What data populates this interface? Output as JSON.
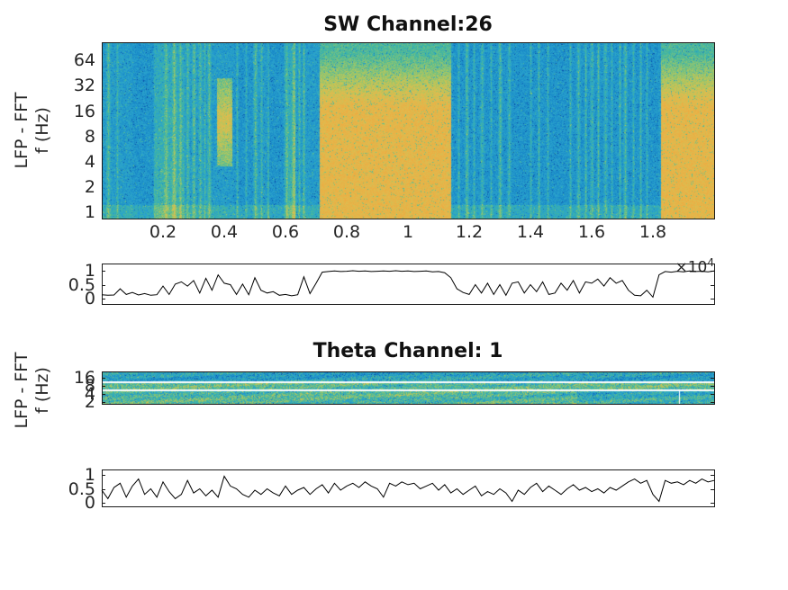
{
  "figure": {
    "bg": "#ffffff",
    "text_color": "#262626",
    "axis_color": "#1a1a1a",
    "line_color": "#000000",
    "colormap_name": "parula"
  },
  "panels": {
    "sw": {
      "title": "SW Channel:26",
      "ylabel_line1": "LFP - FFT",
      "ylabel_line2": "f (Hz)",
      "ytick_labels": [
        "64",
        "32",
        "16",
        "8",
        "4",
        "2",
        "1"
      ],
      "xtick_labels": [
        "0.2",
        "0.4",
        "0.6",
        "0.8",
        "1",
        "1.2",
        "1.4",
        "1.6",
        "1.8"
      ],
      "x_multiplier_base": "×10",
      "x_multiplier_exp": "4"
    },
    "sw_state": {
      "ytick_labels": [
        "1",
        "0.5",
        "0"
      ]
    },
    "theta": {
      "title": "Theta Channel: 1",
      "ylabel_line1": "LFP - FFT",
      "ylabel_line2": "f (Hz)",
      "ytick_labels": [
        "16",
        "8",
        "4",
        "2"
      ]
    },
    "theta_state": {
      "ytick_labels": [
        "1",
        "0.5",
        "0"
      ]
    }
  },
  "chart_data": [
    {
      "type": "heatmap",
      "subtype": "spectrogram",
      "panel": "sw",
      "title": "SW Channel:26",
      "ylabel": "LFP - FFT f (Hz)",
      "freq_scale": "log",
      "freq_ticks_hz": [
        64,
        32,
        16,
        8,
        4,
        2,
        1
      ],
      "freq_range_hz": [
        0.85,
        105
      ],
      "time_range": [
        0,
        20000
      ],
      "time_ticks": [
        2000,
        4000,
        6000,
        8000,
        10000,
        12000,
        14000,
        16000,
        18000
      ],
      "time_multiplier": "×10^4",
      "colormap": "parula",
      "high_power_intervals": [
        [
          7100,
          11400
        ],
        [
          18250,
          20000
        ]
      ],
      "mixed_intervals": [
        [
          1700,
          2700
        ],
        [
          5400,
          6300
        ]
      ],
      "low_power_intervals": [
        [
          1000,
          1650
        ],
        [
          4300,
          5000
        ],
        [
          5450,
          6000
        ],
        [
          11450,
          18150
        ]
      ],
      "warm_blob": {
        "time": [
          3750,
          4250
        ],
        "freq_frac": [
          0.2,
          0.7
        ]
      },
      "streaks": [
        [
          200,
          2,
          0.26
        ],
        [
          500,
          1,
          0.18
        ],
        [
          2100,
          2,
          0.2
        ],
        [
          2350,
          2,
          0.28
        ],
        [
          2550,
          1,
          0.2
        ],
        [
          2800,
          2,
          0.24
        ],
        [
          3000,
          2,
          0.3
        ],
        [
          3200,
          2,
          0.24
        ],
        [
          3350,
          1,
          0.2
        ],
        [
          3500,
          2,
          0.28
        ],
        [
          4400,
          1,
          0.22
        ],
        [
          4700,
          1,
          0.18
        ],
        [
          5000,
          2,
          0.3
        ],
        [
          5200,
          1,
          0.2
        ],
        [
          6000,
          2,
          0.24
        ],
        [
          6250,
          2,
          0.3
        ],
        [
          6450,
          1,
          0.22
        ],
        [
          6600,
          1,
          0.26
        ],
        [
          11650,
          1,
          0.2
        ],
        [
          11900,
          2,
          0.28
        ],
        [
          12150,
          1,
          0.22
        ],
        [
          12400,
          2,
          0.24
        ],
        [
          12700,
          1,
          0.2
        ],
        [
          13000,
          2,
          0.3
        ],
        [
          13300,
          2,
          0.22
        ],
        [
          14000,
          1,
          0.2
        ],
        [
          14250,
          1,
          0.26
        ],
        [
          14550,
          1,
          0.2
        ],
        [
          15300,
          1,
          0.22
        ],
        [
          15550,
          2,
          0.24
        ],
        [
          15800,
          1,
          0.28
        ],
        [
          16000,
          2,
          0.24
        ],
        [
          16200,
          1,
          0.3
        ],
        [
          16450,
          2,
          0.24
        ],
        [
          16650,
          1,
          0.2
        ],
        [
          16900,
          1,
          0.26
        ],
        [
          17100,
          2,
          0.28
        ],
        [
          17350,
          1,
          0.22
        ],
        [
          17600,
          1,
          0.26
        ],
        [
          17800,
          1,
          0.2
        ]
      ]
    },
    {
      "type": "line",
      "panel": "sw_state",
      "y_ticks": [
        0,
        0.5,
        1
      ],
      "y_range": [
        -0.2,
        1.25
      ],
      "x_range": [
        0,
        20000
      ],
      "line_color": "#000000",
      "values": [
        0.14,
        0.12,
        0.13,
        0.35,
        0.15,
        0.22,
        0.13,
        0.18,
        0.12,
        0.14,
        0.45,
        0.15,
        0.52,
        0.6,
        0.45,
        0.65,
        0.2,
        0.73,
        0.3,
        0.85,
        0.55,
        0.5,
        0.15,
        0.52,
        0.14,
        0.75,
        0.3,
        0.2,
        0.25,
        0.12,
        0.15,
        0.1,
        0.14,
        0.78,
        0.18,
        0.55,
        0.95,
        0.97,
        0.99,
        0.97,
        0.98,
        1.0,
        0.98,
        0.99,
        0.97,
        0.98,
        0.99,
        0.98,
        1.0,
        0.98,
        0.99,
        0.97,
        0.98,
        0.99,
        0.96,
        0.97,
        0.93,
        0.75,
        0.35,
        0.22,
        0.15,
        0.5,
        0.2,
        0.55,
        0.15,
        0.5,
        0.12,
        0.55,
        0.6,
        0.2,
        0.5,
        0.25,
        0.6,
        0.15,
        0.2,
        0.55,
        0.3,
        0.65,
        0.2,
        0.6,
        0.55,
        0.7,
        0.45,
        0.75,
        0.55,
        0.65,
        0.3,
        0.12,
        0.1,
        0.3,
        0.05,
        0.85,
        0.97,
        0.95,
        0.98,
        0.96,
        0.99,
        0.97,
        0.98,
        0.96,
        0.99
      ]
    },
    {
      "type": "heatmap",
      "subtype": "spectrogram",
      "panel": "theta",
      "title": "Theta Channel: 1",
      "ylabel": "LFP - FFT f (Hz)",
      "freq_scale": "log",
      "freq_ticks_hz": [
        16,
        8,
        4,
        2
      ],
      "freq_range_hz": [
        1.72,
        27
      ],
      "time_range": [
        0,
        20000
      ],
      "colormap": "parula",
      "bands": [
        {
          "rows": [
            0,
            10
          ],
          "base": 0.34
        },
        {
          "rows": [
            11,
            12
          ],
          "base": "white"
        },
        {
          "rows": [
            13,
            19
          ],
          "base": 0.52
        },
        {
          "rows": [
            20,
            21
          ],
          "base": "white"
        },
        {
          "rows": [
            22,
            35
          ],
          "base": 0.5,
          "cool_after_time": 15500,
          "cool_base": 0.4
        }
      ],
      "white_vline_time": 18850
    },
    {
      "type": "line",
      "panel": "theta_state",
      "y_ticks": [
        0,
        0.5,
        1
      ],
      "y_range": [
        -0.2,
        1.25
      ],
      "x_range": [
        0,
        20000
      ],
      "line_color": "#000000",
      "values": [
        0.45,
        0.15,
        0.55,
        0.7,
        0.2,
        0.6,
        0.85,
        0.3,
        0.5,
        0.2,
        0.75,
        0.4,
        0.15,
        0.3,
        0.8,
        0.35,
        0.5,
        0.25,
        0.45,
        0.2,
        0.95,
        0.6,
        0.5,
        0.3,
        0.2,
        0.45,
        0.3,
        0.5,
        0.35,
        0.25,
        0.6,
        0.3,
        0.45,
        0.55,
        0.3,
        0.5,
        0.65,
        0.35,
        0.7,
        0.45,
        0.6,
        0.7,
        0.55,
        0.75,
        0.6,
        0.5,
        0.2,
        0.7,
        0.6,
        0.75,
        0.65,
        0.7,
        0.5,
        0.6,
        0.7,
        0.45,
        0.65,
        0.35,
        0.5,
        0.3,
        0.45,
        0.6,
        0.25,
        0.4,
        0.3,
        0.5,
        0.35,
        0.05,
        0.45,
        0.3,
        0.55,
        0.7,
        0.4,
        0.6,
        0.45,
        0.3,
        0.5,
        0.65,
        0.45,
        0.55,
        0.4,
        0.5,
        0.35,
        0.55,
        0.45,
        0.6,
        0.75,
        0.85,
        0.7,
        0.8,
        0.3,
        0.05,
        0.8,
        0.7,
        0.75,
        0.65,
        0.8,
        0.7,
        0.85,
        0.75,
        0.8
      ]
    }
  ]
}
